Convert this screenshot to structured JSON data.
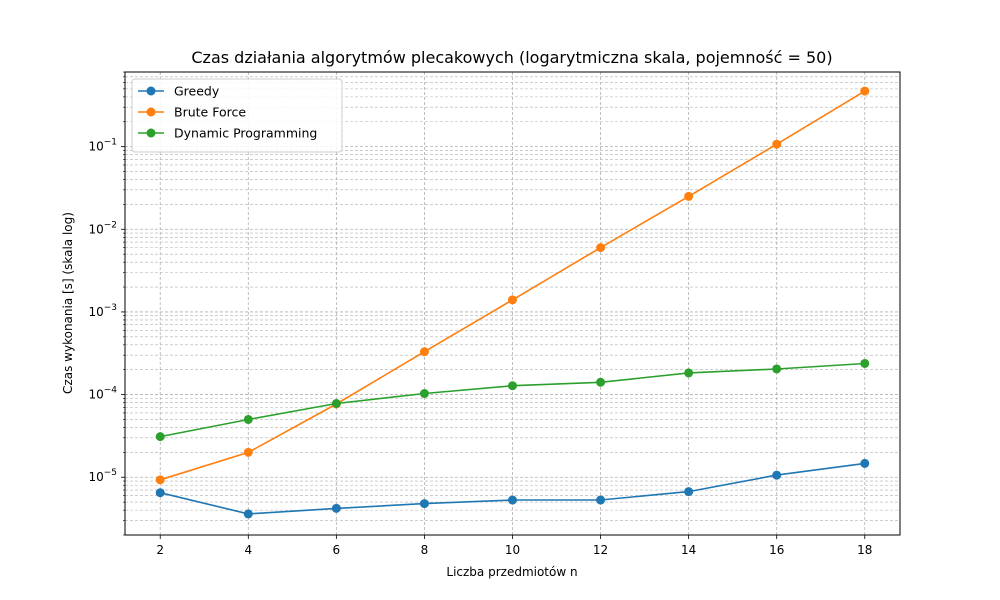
{
  "chart_data": {
    "type": "line",
    "title": "Czas działania algorytmów plecakowych (logarytmiczna skala, pojemność = 50)",
    "xlabel": "Liczba przedmiotów n",
    "ylabel": "Czas wykonania [s] (skala log)",
    "x": [
      2,
      4,
      6,
      8,
      10,
      12,
      14,
      16,
      18
    ],
    "xticks": [
      2,
      4,
      6,
      8,
      10,
      12,
      14,
      16,
      18
    ],
    "xlim": [
      1.2,
      18.8
    ],
    "yscale": "log",
    "ylim": [
      2e-06,
      0.8
    ],
    "yticks": [
      {
        "value": 1e-05,
        "base": "10",
        "exp": "−5"
      },
      {
        "value": 0.0001,
        "base": "10",
        "exp": "−4"
      },
      {
        "value": 0.001,
        "base": "10",
        "exp": "−3"
      },
      {
        "value": 0.01,
        "base": "10",
        "exp": "−2"
      },
      {
        "value": 0.1,
        "base": "10",
        "exp": "−1"
      }
    ],
    "grid": true,
    "legend_position": "top-left",
    "series": [
      {
        "name": "Greedy",
        "color": "#1f77b4",
        "values": [
          6.5e-06,
          3.6e-06,
          4.2e-06,
          4.8e-06,
          5.3e-06,
          5.3e-06,
          6.7e-06,
          1.06e-05,
          1.47e-05
        ]
      },
      {
        "name": "Brute Force",
        "color": "#ff7f0e",
        "values": [
          9.3e-06,
          2e-05,
          7.7e-05,
          0.00033,
          0.0014,
          0.006,
          0.025,
          0.107,
          0.47
        ]
      },
      {
        "name": "Dynamic Programming",
        "color": "#2ca02c",
        "values": [
          3.1e-05,
          5e-05,
          7.8e-05,
          0.000103,
          0.000128,
          0.000141,
          0.000183,
          0.000204,
          0.000238
        ]
      }
    ]
  }
}
